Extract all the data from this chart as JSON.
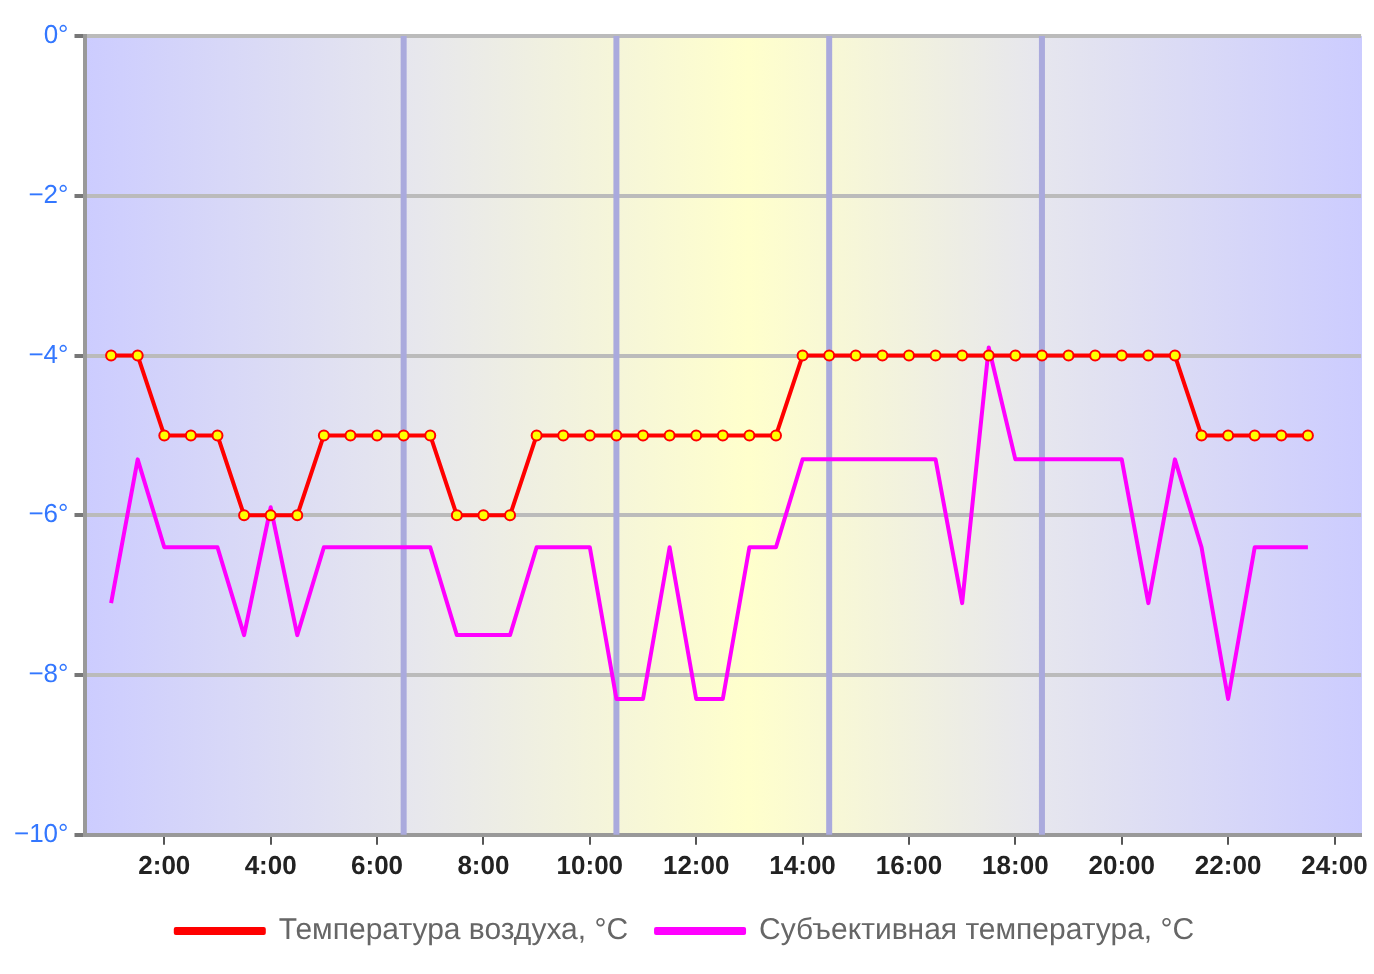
{
  "chart_data": {
    "type": "line",
    "x": [
      1,
      1.5,
      2,
      2.5,
      3,
      3.5,
      4,
      4.5,
      5,
      5.5,
      6,
      6.5,
      7,
      7.5,
      8,
      8.5,
      9,
      9.5,
      10,
      10.5,
      11,
      11.5,
      12,
      12.5,
      13,
      13.5,
      14,
      14.5,
      15,
      15.5,
      16,
      16.5,
      17,
      17.5,
      18,
      18.5,
      19,
      19.5,
      20,
      20.5,
      21,
      21.5,
      22,
      22.5,
      23,
      23.5
    ],
    "series": [
      {
        "name": "Температура воздуха, °C",
        "color": "#ff0000",
        "marker": "circle",
        "values": [
          -4,
          -4,
          -5,
          -5,
          -5,
          -6,
          -6,
          -6,
          -5,
          -5,
          -5,
          -5,
          -5,
          -6,
          -6,
          -6,
          -5,
          -5,
          -5,
          -5,
          -5,
          -5,
          -5,
          -5,
          -5,
          -5,
          -4,
          -4,
          -4,
          -4,
          -4,
          -4,
          -4,
          -4,
          -4,
          -4,
          -4,
          -4,
          -4,
          -4,
          -4,
          -5,
          -5,
          -5,
          -5,
          -5
        ]
      },
      {
        "name": "Субъективная температура, °C",
        "color": "#ff00ff",
        "marker": "none",
        "values": [
          -7.1,
          -5.3,
          -6.4,
          -6.4,
          -6.4,
          -7.5,
          -5.9,
          -7.5,
          -6.4,
          -6.4,
          -6.4,
          -6.4,
          -6.4,
          -7.5,
          -7.5,
          -7.5,
          -6.4,
          -6.4,
          -6.4,
          -8.3,
          -8.3,
          -6.4,
          -8.3,
          -8.3,
          -6.4,
          -6.4,
          -5.3,
          -5.3,
          -5.3,
          -5.3,
          -5.3,
          -5.3,
          -7.1,
          -3.9,
          -5.3,
          -5.3,
          -5.3,
          -5.3,
          -5.3,
          -7.1,
          -5.3,
          -6.4,
          -8.3,
          -6.4,
          -6.4,
          -6.4
        ]
      }
    ],
    "xlim": [
      0.5,
      24.5
    ],
    "xticks": [
      {
        "value": 2,
        "label": "2:00"
      },
      {
        "value": 4,
        "label": "4:00"
      },
      {
        "value": 6,
        "label": "6:00"
      },
      {
        "value": 8,
        "label": "8:00"
      },
      {
        "value": 10,
        "label": "10:00"
      },
      {
        "value": 12,
        "label": "12:00"
      },
      {
        "value": 14,
        "label": "14:00"
      },
      {
        "value": 16,
        "label": "16:00"
      },
      {
        "value": 18,
        "label": "18:00"
      },
      {
        "value": 20,
        "label": "20:00"
      },
      {
        "value": 22,
        "label": "22:00"
      },
      {
        "value": 24,
        "label": "24:00"
      }
    ],
    "ylim": [
      -10,
      0
    ],
    "yticks": [
      {
        "value": -10,
        "label": "−10°"
      },
      {
        "value": -8,
        "label": "−8°"
      },
      {
        "value": -6,
        "label": "−6°"
      },
      {
        "value": -4,
        "label": "−4°"
      },
      {
        "value": -2,
        "label": "−2°"
      },
      {
        "value": 0,
        "label": "0°"
      }
    ],
    "ref_lines": [
      {
        "axis": "x",
        "value": 6.5,
        "color": "#aaaadd"
      },
      {
        "axis": "x",
        "value": 10.5,
        "color": "#aaaadd"
      },
      {
        "axis": "x",
        "value": 14.5,
        "color": "#aaaadd"
      },
      {
        "axis": "x",
        "value": 18.5,
        "color": "#aaaadd"
      }
    ],
    "grid": "y",
    "legend": "bottom",
    "line_style": "solid"
  }
}
